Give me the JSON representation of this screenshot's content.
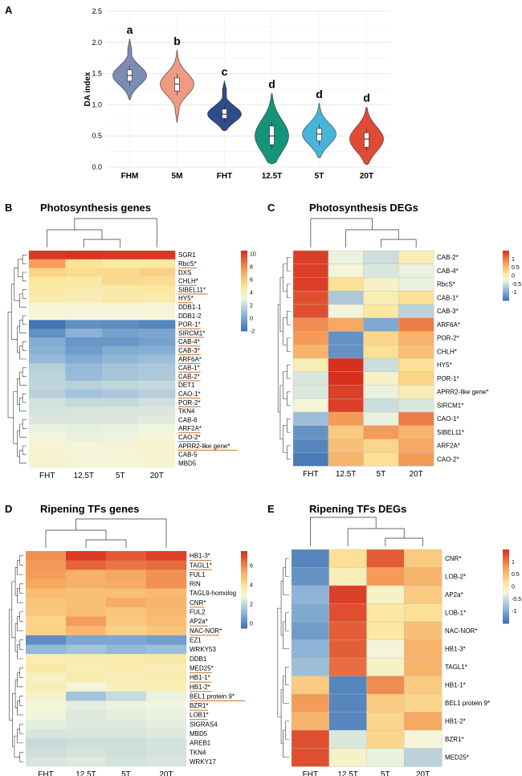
{
  "panels": {
    "A": "A",
    "B": "B",
    "C": "C",
    "D": "D",
    "E": "E"
  },
  "violin": {
    "type": "violin",
    "ylabel": "DA index",
    "ylim": [
      0,
      2.5
    ],
    "yticks": [
      "0.0",
      "0.5",
      "1.0",
      "1.5",
      "2.0",
      "2.5"
    ],
    "groups": [
      {
        "name": "FHM",
        "letter": "a",
        "color": "#7b8cb5",
        "median": 1.47,
        "q1": 1.38,
        "q3": 1.56,
        "min": 1.08,
        "max": 2.05
      },
      {
        "name": "5M",
        "letter": "b",
        "color": "#ef9a82",
        "median": 1.33,
        "q1": 1.22,
        "q3": 1.43,
        "min": 0.72,
        "max": 1.87
      },
      {
        "name": "FHT",
        "letter": "c",
        "color": "#2f4b8a",
        "median": 0.85,
        "q1": 0.78,
        "q3": 0.93,
        "min": 0.58,
        "max": 1.38
      },
      {
        "name": "12.5T",
        "letter": "d",
        "color": "#14957a",
        "median": 0.5,
        "q1": 0.36,
        "q3": 0.66,
        "min": 0.05,
        "max": 1.18
      },
      {
        "name": "5T",
        "letter": "d",
        "color": "#48b4d8",
        "median": 0.53,
        "q1": 0.42,
        "q3": 0.62,
        "min": 0.15,
        "max": 1.02
      },
      {
        "name": "20T",
        "letter": "d",
        "color": "#e14a35",
        "median": 0.45,
        "q1": 0.32,
        "q3": 0.55,
        "min": 0.04,
        "max": 0.96
      }
    ]
  },
  "heatmaps": [
    {
      "id": "B",
      "title": "Photosynthesis genes",
      "columns": [
        "FHT",
        "12.5T",
        "5T",
        "20T"
      ],
      "legend_ticks": [
        "10",
        "8",
        "6",
        "4",
        "2",
        "0",
        "-2"
      ],
      "legend_range": [
        -2,
        10.5
      ],
      "rows": [
        "SGR1",
        "RbcS*",
        "DXS",
        "CHLH*",
        "SIBEL11*",
        "HY5*",
        "DDB1-1",
        "DDB1-2",
        "POR-1*",
        "SIRCM1*",
        "CAB-4*",
        "CAB-3*",
        "ARF6A*",
        "CAB-1*",
        "CAB-2*",
        "DET1",
        "CAO-1*",
        "POR-2*",
        "TKN4",
        "CAB-6",
        "ARF2A*",
        "CAO-2*",
        "APRR2-like gene*",
        "CAB-5",
        "MBD5"
      ],
      "underlined": [
        "RbcS*",
        "CHLH*",
        "SIBEL11*",
        "HY5*",
        "POR-1*",
        "SIRCM1*",
        "CAB-4*",
        "CAB-3*",
        "ARF6A*",
        "CAB-1*",
        "CAB-2*",
        "CAO-1*",
        "POR-2*",
        "ARF2A*",
        "CAO-2*",
        "APRR2-like gene*"
      ],
      "values": [
        [
          10.2,
          10.4,
          10.3,
          10.3
        ],
        [
          7.5,
          5.0,
          4.6,
          4.6
        ],
        [
          5.6,
          5.3,
          5.4,
          5.7
        ],
        [
          4.8,
          4.6,
          5.4,
          5.2
        ],
        [
          4.6,
          4.4,
          4.5,
          4.8
        ],
        [
          4.4,
          4.2,
          4.6,
          4.4
        ],
        [
          3.5,
          3.5,
          3.5,
          3.5
        ],
        [
          3.4,
          3.3,
          3.3,
          3.4
        ],
        [
          -1.8,
          -0.8,
          -0.9,
          -1.2
        ],
        [
          -0.8,
          0.4,
          -0.2,
          0.0
        ],
        [
          0.2,
          -0.6,
          -0.6,
          -0.2
        ],
        [
          0.4,
          -0.4,
          0.2,
          0.3
        ],
        [
          0.7,
          0.2,
          0.6,
          0.9
        ],
        [
          1.6,
          0.7,
          1.2,
          1.3
        ],
        [
          1.8,
          0.8,
          1.2,
          1.4
        ],
        [
          1.9,
          1.7,
          1.9,
          2.0
        ],
        [
          1.7,
          1.1,
          1.3,
          1.6
        ],
        [
          2.3,
          2.0,
          2.0,
          2.3
        ],
        [
          2.4,
          2.5,
          2.6,
          2.6
        ],
        [
          2.6,
          2.5,
          2.6,
          2.8
        ],
        [
          3.0,
          2.9,
          3.0,
          3.2
        ],
        [
          3.3,
          3.0,
          3.1,
          3.4
        ],
        [
          3.6,
          3.4,
          3.5,
          3.7
        ],
        [
          3.6,
          3.4,
          3.4,
          3.6
        ],
        [
          3.7,
          3.5,
          3.5,
          3.6
        ]
      ]
    },
    {
      "id": "C",
      "title": "Photosynthesis DEGs",
      "columns": [
        "FHT",
        "12.5T",
        "5T",
        "20T"
      ],
      "legend_ticks": [
        "1",
        "0.5",
        "0",
        "-0.5",
        "-1"
      ],
      "legend_range": [
        -1.5,
        1.5
      ],
      "rows": [
        "CAB-2*",
        "CAB-4*",
        "RbcS*",
        "CAB-1*",
        "CAB-3*",
        "ARF6A*",
        "POR-2*",
        "CHLH*",
        "HY5*",
        "POR-1*",
        "APRR2-like gene*",
        "SIRCM1*",
        "CAO-1*",
        "SIBEL11*",
        "ARF2A*",
        "CAO-2*"
      ],
      "underlined": [],
      "values": [
        [
          1.4,
          -0.3,
          -0.5,
          0.0
        ],
        [
          1.4,
          -0.2,
          -0.4,
          -0.3
        ],
        [
          1.4,
          0.2,
          -0.1,
          -0.3
        ],
        [
          1.3,
          -0.7,
          0.0,
          0.2
        ],
        [
          1.3,
          -0.2,
          0.1,
          -0.6
        ],
        [
          0.9,
          0.7,
          -1.0,
          1.0
        ],
        [
          0.8,
          -1.2,
          0.3,
          0.6
        ],
        [
          0.6,
          -1.2,
          0.2,
          0.5
        ],
        [
          0.0,
          1.5,
          -0.5,
          0.2
        ],
        [
          -0.4,
          1.5,
          -0.1,
          0.3
        ],
        [
          -0.4,
          1.4,
          -0.3,
          0.0
        ],
        [
          -0.2,
          1.4,
          -0.5,
          -0.4
        ],
        [
          -0.8,
          0.8,
          -0.3,
          1.0
        ],
        [
          -1.2,
          0.4,
          0.8,
          0.6
        ],
        [
          -1.3,
          0.5,
          0.3,
          0.7
        ],
        [
          -1.4,
          0.6,
          0.2,
          0.8
        ]
      ]
    },
    {
      "id": "D",
      "title": "Ripening TFs genes",
      "columns": [
        "FHT",
        "12.5T",
        "5T",
        "20T"
      ],
      "legend_ticks": [
        "6",
        "4",
        "2",
        "0"
      ],
      "legend_range": [
        -0.5,
        7.5
      ],
      "rows": [
        "HB1-3*",
        "TAGL1*",
        "FUL1",
        "RIN",
        "TAGL9-homolog",
        "CNR*",
        "FUL2",
        "AP2a*",
        "NAC-NOR*",
        "EZ1",
        "WRKY53",
        "DDB1",
        "MED25*",
        "HB1-1*",
        "HB1-2*",
        "BEL1 protein 9*",
        "BZR1*",
        "LOB1*",
        "SIGRAS4",
        "MBD5",
        "AREB1",
        "TKN4",
        "WRKY17"
      ],
      "underlined": [
        "HB1-3*",
        "TAGL1*",
        "CNR*",
        "AP2a*",
        "NAC-NOR*",
        "MED25*",
        "HB1-1*",
        "HB1-2*",
        "BEL1 protein 9*",
        "BZR1*",
        "LOB1*"
      ],
      "values": [
        [
          5.8,
          7.3,
          6.8,
          7.2
        ],
        [
          5.7,
          6.6,
          6.3,
          6.5
        ],
        [
          5.6,
          5.2,
          5.4,
          5.8
        ],
        [
          5.4,
          5.2,
          5.3,
          5.8
        ],
        [
          4.9,
          4.8,
          4.8,
          5.0
        ],
        [
          4.7,
          4.8,
          5.3,
          5.1
        ],
        [
          4.6,
          4.9,
          4.7,
          5.0
        ],
        [
          4.3,
          5.6,
          4.6,
          4.9
        ],
        [
          4.4,
          5.0,
          4.4,
          4.7
        ],
        [
          0.2,
          0.8,
          0.8,
          0.6
        ],
        [
          1.2,
          1.5,
          1.2,
          1.4
        ],
        [
          3.5,
          3.6,
          3.6,
          3.7
        ],
        [
          3.7,
          3.5,
          3.6,
          3.5
        ],
        [
          3.3,
          3.6,
          3.5,
          3.6
        ],
        [
          3.5,
          3.0,
          3.4,
          3.5
        ],
        [
          3.2,
          1.5,
          2.1,
          2.7
        ],
        [
          3.0,
          2.6,
          2.7,
          2.8
        ],
        [
          2.8,
          2.5,
          2.6,
          2.7
        ],
        [
          2.6,
          2.5,
          2.5,
          2.6
        ],
        [
          2.4,
          2.4,
          2.4,
          2.5
        ],
        [
          2.1,
          2.2,
          2.2,
          2.3
        ],
        [
          2.2,
          2.3,
          2.2,
          2.3
        ],
        [
          2.4,
          2.5,
          2.3,
          2.4
        ]
      ]
    },
    {
      "id": "E",
      "title": "Ripening TFs DEGs",
      "columns": [
        "FHT",
        "12.5T",
        "5T",
        "20T"
      ],
      "legend_ticks": [
        "1",
        "0.5",
        "0",
        "-0.5",
        "-1"
      ],
      "legend_range": [
        -1.5,
        1.5
      ],
      "rows": [
        "CNR*",
        "LOB-2*",
        "AP2a*",
        "LOB-1*",
        "NAC-NOR*",
        "HB1-3*",
        "TAGL1*",
        "HB1-1*",
        "BEL1 protein 9*",
        "HB1-2*",
        "BZR1*",
        "MED25*"
      ],
      "underlined": [],
      "values": [
        [
          -1.3,
          0.2,
          1.2,
          0.4
        ],
        [
          -1.2,
          0.0,
          0.8,
          0.6
        ],
        [
          -0.9,
          1.4,
          -0.1,
          0.4
        ],
        [
          -1.0,
          1.3,
          0.1,
          0.2
        ],
        [
          -1.1,
          1.2,
          0.1,
          0.5
        ],
        [
          -0.9,
          1.2,
          -0.2,
          0.6
        ],
        [
          -0.8,
          1.1,
          -0.1,
          0.6
        ],
        [
          0.4,
          -1.3,
          0.9,
          0.4
        ],
        [
          0.8,
          -1.3,
          0.4,
          0.3
        ],
        [
          0.6,
          -1.3,
          0.3,
          0.7
        ],
        [
          1.3,
          -0.4,
          0.3,
          -0.2
        ],
        [
          1.3,
          -0.1,
          -0.3,
          -0.6
        ]
      ]
    }
  ]
}
